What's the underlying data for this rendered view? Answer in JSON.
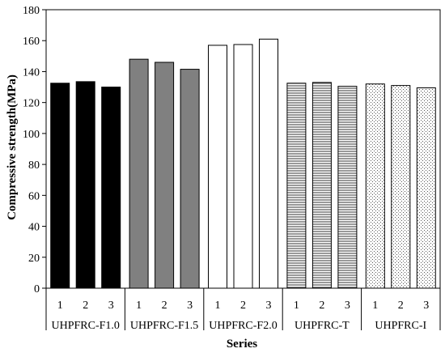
{
  "chart_data": {
    "type": "bar",
    "title": "",
    "xlabel": "Series",
    "ylabel": "Compressive strength(MPa)",
    "ylim": [
      0,
      180
    ],
    "yticks": [
      0,
      20,
      40,
      60,
      80,
      100,
      120,
      140,
      160,
      180
    ],
    "grid": false,
    "legend": "none",
    "groups": [
      {
        "name": "UHPFRC-F1.0",
        "categories": [
          "1",
          "2",
          "3"
        ],
        "values": [
          132.5,
          133.5,
          130.0
        ],
        "fill": "solid",
        "color": "#000000"
      },
      {
        "name": "UHPFRC-F1.5",
        "categories": [
          "1",
          "2",
          "3"
        ],
        "values": [
          148.0,
          146.0,
          141.5
        ],
        "fill": "solid",
        "color": "#808080"
      },
      {
        "name": "UHPFRC-F2.0",
        "categories": [
          "1",
          "2",
          "3"
        ],
        "values": [
          157.0,
          157.5,
          161.0
        ],
        "fill": "solid",
        "color": "#ffffff"
      },
      {
        "name": "UHPFRC-T",
        "categories": [
          "1",
          "2",
          "3"
        ],
        "values": [
          132.5,
          133.0,
          130.5
        ],
        "fill": "horizontal-stripes",
        "color": "#000000"
      },
      {
        "name": "UHPFRC-I",
        "categories": [
          "1",
          "2",
          "3"
        ],
        "values": [
          132.0,
          131.0,
          129.5
        ],
        "fill": "dots",
        "color": "#555555"
      }
    ]
  }
}
